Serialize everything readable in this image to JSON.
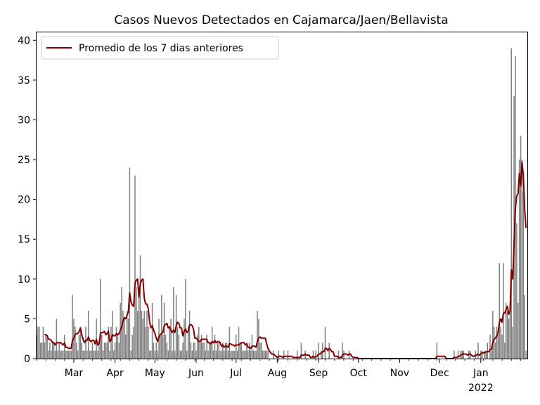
{
  "chart_data": {
    "type": "bar",
    "title": "Casos Nuevos Detectados en Cajamarca/Jaen/Bellavista",
    "xlabel": "",
    "ylabel": "",
    "x_range": [
      "2021-02-01",
      "2022-02-05"
    ],
    "ylim": [
      0,
      41
    ],
    "yticks": [
      0,
      5,
      10,
      15,
      20,
      25,
      30,
      35,
      40
    ],
    "xticks": [
      {
        "date": "2021-03-01",
        "label": "Mar"
      },
      {
        "date": "2021-04-01",
        "label": "Apr"
      },
      {
        "date": "2021-05-01",
        "label": "May"
      },
      {
        "date": "2021-06-01",
        "label": "Jun"
      },
      {
        "date": "2021-07-01",
        "label": "Jul"
      },
      {
        "date": "2021-08-01",
        "label": "Aug"
      },
      {
        "date": "2021-09-01",
        "label": "Sep"
      },
      {
        "date": "2021-10-01",
        "label": "Oct"
      },
      {
        "date": "2021-11-01",
        "label": "Nov"
      },
      {
        "date": "2021-12-01",
        "label": "Dec"
      },
      {
        "date": "2022-01-01",
        "label": "Jan",
        "sublabel": "2022"
      }
    ],
    "grid": false,
    "legend_position": "top-left",
    "bar_color": "#808080",
    "line_color": "#800000",
    "start_date": "2021-02-01",
    "daily_new_cases": [
      3,
      4,
      4,
      2,
      2,
      4,
      2,
      3,
      3,
      1,
      2,
      1,
      2,
      2,
      1,
      5,
      1,
      2,
      1,
      1,
      1,
      3,
      1,
      1,
      1,
      1,
      1,
      8,
      5,
      4,
      2,
      1,
      3,
      4,
      2,
      1,
      1,
      4,
      1,
      6,
      1,
      1,
      2,
      1,
      1,
      5,
      1,
      2,
      10,
      3,
      1,
      2,
      2,
      2,
      4,
      1,
      4,
      6,
      1,
      2,
      4,
      3,
      2,
      7,
      9,
      6,
      5,
      3,
      6,
      5,
      24,
      1,
      3,
      4,
      23,
      9,
      6,
      8,
      13,
      6,
      5,
      6,
      4,
      6,
      4,
      1,
      1,
      7,
      2,
      1,
      2,
      1,
      5,
      3,
      8,
      3,
      7,
      3,
      2,
      1,
      4,
      5,
      1,
      9,
      1,
      8,
      4,
      3,
      1,
      1,
      2,
      5,
      10,
      1,
      4,
      6,
      2,
      1,
      2,
      2,
      1,
      3,
      4,
      2,
      3,
      2,
      2,
      1,
      3,
      1,
      2,
      2,
      4,
      1,
      3,
      1,
      2,
      2,
      1,
      1,
      2,
      1,
      2,
      2,
      1,
      4,
      1,
      1,
      1,
      1,
      3,
      1,
      4,
      2,
      2,
      1,
      1,
      1,
      2,
      1,
      2,
      1,
      3,
      1,
      1,
      1,
      6,
      5,
      2,
      2,
      1,
      1,
      1,
      1,
      1,
      0,
      0,
      0,
      1,
      0,
      0,
      0,
      1,
      0,
      0,
      0,
      1,
      0,
      0,
      1,
      0,
      0,
      0,
      0,
      0,
      0,
      1,
      0,
      0,
      2,
      0,
      0,
      1,
      0,
      0,
      0,
      0,
      0,
      1,
      0,
      1,
      0,
      2,
      0,
      1,
      2,
      0,
      4,
      0,
      0,
      2,
      0,
      0,
      0,
      0,
      0,
      0,
      1,
      0,
      0,
      2,
      1,
      0,
      0,
      0,
      1,
      0,
      0,
      0,
      0,
      0,
      0,
      0,
      0,
      0,
      0,
      0,
      0,
      0,
      0,
      0,
      0,
      0,
      0,
      0,
      0,
      0,
      0,
      0,
      0,
      0,
      0,
      0,
      0,
      0,
      0,
      0,
      0,
      0,
      0,
      0,
      0,
      0,
      0,
      0,
      0,
      0,
      0,
      0,
      0,
      0,
      0,
      0,
      0,
      0,
      0,
      0,
      0,
      0,
      0,
      0,
      0,
      0,
      0,
      0,
      0,
      0,
      0,
      0,
      0,
      0,
      2,
      0,
      0,
      0,
      0,
      0,
      0,
      0,
      0,
      0,
      0,
      0,
      0,
      1,
      0,
      0,
      1,
      0,
      1,
      1,
      1,
      0,
      0,
      0,
      1,
      1,
      0,
      0,
      0,
      1,
      0,
      2,
      0,
      1,
      1,
      0,
      1,
      1,
      2,
      0,
      3,
      1,
      6,
      4,
      2,
      4,
      3,
      12,
      4,
      3,
      12,
      2,
      7,
      6,
      5,
      7,
      39,
      4,
      33,
      38,
      17,
      7,
      25,
      28,
      25,
      21,
      8,
      1
    ],
    "series": [
      {
        "name": "Promedio de los 7 dias anteriores",
        "type": "line",
        "window": 7
      }
    ]
  }
}
